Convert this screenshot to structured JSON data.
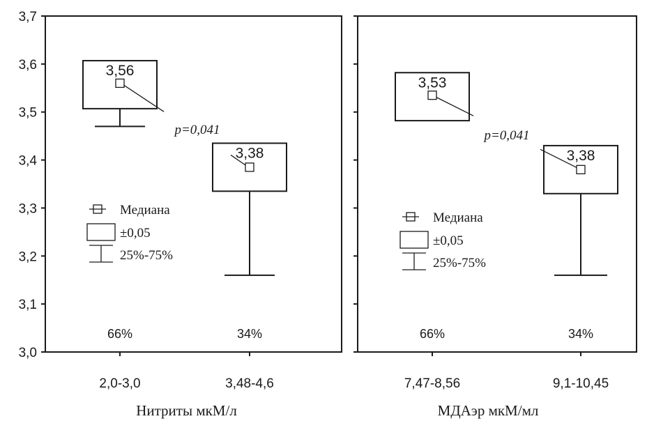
{
  "chart_data": [
    {
      "type": "box",
      "xlabel": "Нитриты мкМ/л",
      "ylabel": "",
      "ylim": [
        3.0,
        3.7
      ],
      "yticks": [
        "3,0",
        "3,1",
        "3,2",
        "3,3",
        "3,4",
        "3,5",
        "3,6",
        "3,7"
      ],
      "categories": [
        "2,0-3,0",
        "3,48-4,6"
      ],
      "boxes": [
        {
          "median": 3.56,
          "median_label": "3,56",
          "box_low": 3.507,
          "box_high": 3.607,
          "whisker_low": 3.47,
          "whisker_high": 3.507,
          "percent": "66%"
        },
        {
          "median": 3.385,
          "median_label": "3,38",
          "box_low": 3.335,
          "box_high": 3.435,
          "whisker_low": 3.16,
          "whisker_high": 3.335,
          "percent": "34%"
        }
      ],
      "p_value": "p=0,041",
      "legend": {
        "placement": "center-left",
        "entries": [
          "Медиана",
          "±0,05",
          "25%-75%"
        ]
      }
    },
    {
      "type": "box",
      "xlabel": "МДАэр мкМ/мл",
      "ylabel": "",
      "ylim": [
        3.0,
        3.7
      ],
      "categories": [
        "7,47-8,56",
        "9,1-10,45"
      ],
      "boxes": [
        {
          "median": 3.535,
          "median_label": "3,53",
          "box_low": 3.482,
          "box_high": 3.582,
          "whisker_low": 3.482,
          "whisker_high": 3.482,
          "percent": "66%"
        },
        {
          "median": 3.38,
          "median_label": "3,38",
          "box_low": 3.33,
          "box_high": 3.43,
          "whisker_low": 3.16,
          "whisker_high": 3.33,
          "percent": "34%"
        }
      ],
      "p_value": "p=0,041",
      "legend": {
        "placement": "center-left",
        "entries": [
          "Медиана",
          "±0,05",
          "25%-75%"
        ]
      }
    }
  ]
}
